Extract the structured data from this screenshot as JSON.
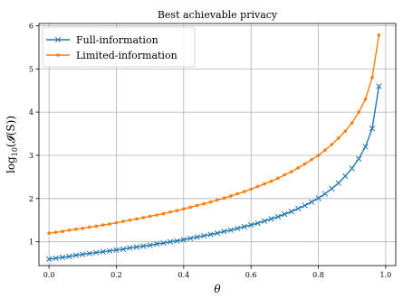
{
  "chart_data": {
    "type": "line",
    "title": "Best achievable privacy",
    "xlabel": "θ",
    "ylabel_parts": {
      "pre": "log",
      "sub": "10",
      "post": "(𝓘(S))"
    },
    "xlim": [
      -0.03,
      1.03
    ],
    "ylim": [
      0.45,
      6.05
    ],
    "xticks": [
      "0.0",
      "0.2",
      "0.4",
      "0.6",
      "0.8",
      "1.0"
    ],
    "yticks": [
      "1",
      "2",
      "3",
      "4",
      "5",
      "6"
    ],
    "grid": true,
    "legend_position": "top-left",
    "x": [
      0.0,
      0.02,
      0.04,
      0.06,
      0.08,
      0.1,
      0.12,
      0.14,
      0.16,
      0.18,
      0.2,
      0.22,
      0.24,
      0.26,
      0.28,
      0.3,
      0.32,
      0.34,
      0.36,
      0.38,
      0.4,
      0.42,
      0.44,
      0.46,
      0.48,
      0.5,
      0.52,
      0.54,
      0.56,
      0.58,
      0.6,
      0.62,
      0.64,
      0.66,
      0.68,
      0.7,
      0.72,
      0.74,
      0.76,
      0.78,
      0.8,
      0.82,
      0.84,
      0.86,
      0.88,
      0.9,
      0.92,
      0.94,
      0.96,
      0.98
    ],
    "series": [
      {
        "name": "Full-information",
        "color": "#1f77b4",
        "marker": "x",
        "values": [
          0.6,
          0.62,
          0.64,
          0.66,
          0.69,
          0.71,
          0.73,
          0.75,
          0.77,
          0.79,
          0.81,
          0.83,
          0.86,
          0.88,
          0.9,
          0.92,
          0.95,
          0.97,
          1.0,
          1.02,
          1.05,
          1.08,
          1.11,
          1.14,
          1.17,
          1.2,
          1.24,
          1.27,
          1.31,
          1.35,
          1.39,
          1.43,
          1.48,
          1.53,
          1.58,
          1.64,
          1.7,
          1.77,
          1.84,
          1.92,
          2.01,
          2.11,
          2.23,
          2.36,
          2.52,
          2.7,
          2.92,
          3.2,
          3.62,
          4.6
        ]
      },
      {
        "name": "Limited-information",
        "color": "#ff7f0e",
        "marker": "o",
        "values": [
          1.2,
          1.22,
          1.24,
          1.27,
          1.29,
          1.31,
          1.34,
          1.36,
          1.39,
          1.41,
          1.44,
          1.47,
          1.5,
          1.53,
          1.56,
          1.59,
          1.62,
          1.65,
          1.69,
          1.72,
          1.76,
          1.8,
          1.84,
          1.88,
          1.92,
          1.97,
          2.01,
          2.06,
          2.11,
          2.16,
          2.22,
          2.28,
          2.34,
          2.4,
          2.47,
          2.55,
          2.62,
          2.71,
          2.8,
          2.9,
          3.0,
          3.12,
          3.25,
          3.4,
          3.56,
          3.75,
          4.0,
          4.3,
          4.8,
          5.78
        ]
      }
    ]
  }
}
